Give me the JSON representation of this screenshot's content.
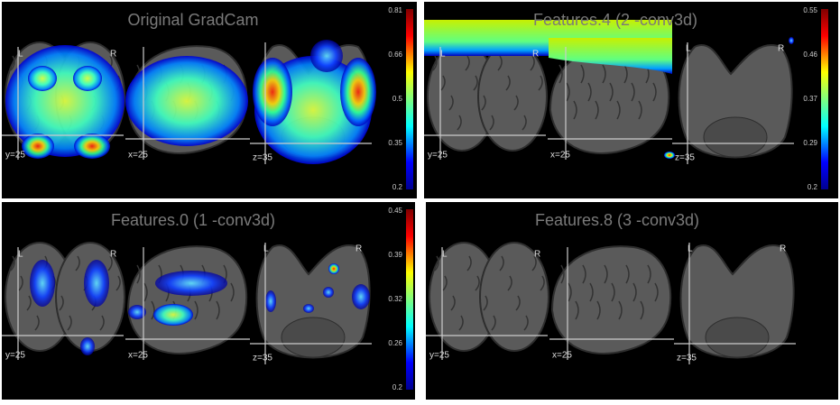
{
  "panels": [
    {
      "title": "Original GradCam",
      "colorbar": [
        "0.81",
        "0.66",
        "0.5",
        "0.35",
        "0.2"
      ],
      "slices": [
        {
          "label": "y=25",
          "left": "L",
          "right": "R"
        },
        {
          "label": "x=25"
        },
        {
          "label": "z=35"
        }
      ]
    },
    {
      "title": "Features.4 (2 -conv3d)",
      "colorbar": [
        "0.55",
        "0.46",
        "0.37",
        "0.29",
        "0.2"
      ],
      "slices": [
        {
          "label": "y=25",
          "left": "L",
          "right": "R"
        },
        {
          "label": "x=25"
        },
        {
          "label": "z=35",
          "left": "L",
          "right": "R"
        }
      ]
    },
    {
      "title": "Features.0 (1 -conv3d)",
      "colorbar": [
        "0.45",
        "0.39",
        "0.32",
        "0.26",
        "0.2"
      ],
      "slices": [
        {
          "label": "y=25",
          "left": "L",
          "right": "R"
        },
        {
          "label": "x=25"
        },
        {
          "label": "z=35",
          "left": "L",
          "right": "R"
        }
      ]
    },
    {
      "title": "Features.8 (3 -conv3d)",
      "slices": [
        {
          "label": "y=25",
          "left": "L",
          "right": "R"
        },
        {
          "label": "x=25"
        },
        {
          "label": "z=35",
          "left": "L",
          "right": "R"
        }
      ]
    }
  ]
}
